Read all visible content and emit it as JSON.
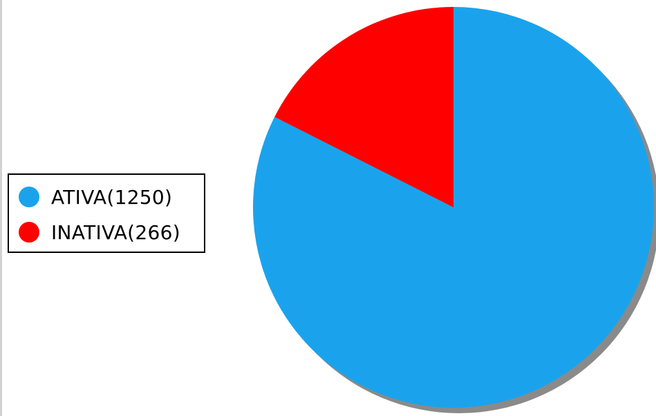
{
  "chart_data": {
    "type": "pie",
    "title": "",
    "categories": [
      "ATIVA",
      "INATIVA"
    ],
    "values": [
      1250,
      266
    ],
    "colors": [
      "#1aa3ec",
      "#ff0000"
    ],
    "shadow_color": "#8a8a8a",
    "start_angle_deg": 0,
    "direction": "clockwise",
    "legend_placement": "left",
    "legend": [
      {
        "label": "ATIVA(1250)",
        "color": "#1aa3ec"
      },
      {
        "label": "INATIVA(266)",
        "color": "#ff0000"
      }
    ]
  }
}
